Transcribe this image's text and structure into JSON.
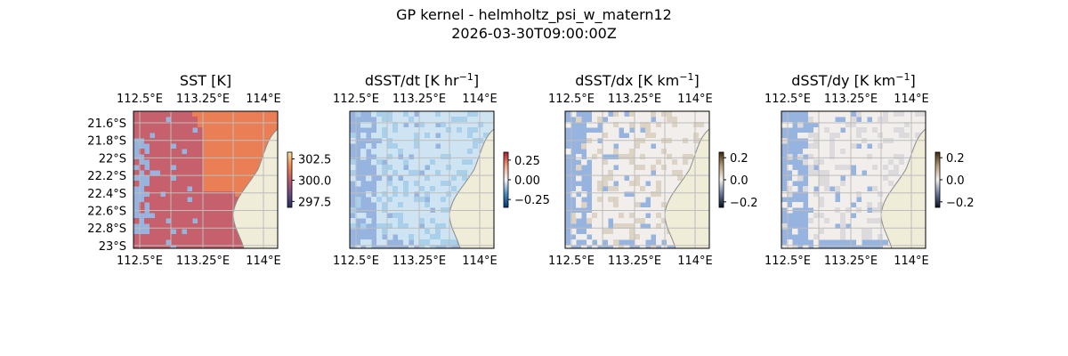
{
  "figure": {
    "title": "GP kernel - helmholtz_psi_w_matern12",
    "subtitle": "2026-03-30T09:00:00Z"
  },
  "chart_data": [
    {
      "type": "heatmap",
      "title": "SST [K]",
      "title_base": "SST [K]",
      "title_sup": "",
      "title_tail": "",
      "x_ticks": [
        "112.5°E",
        "113.25°E",
        "114°E"
      ],
      "y_ticks": [
        "21.6°S",
        "21.8°S",
        "22°S",
        "22.2°S",
        "22.4°S",
        "22.6°S",
        "22.8°S",
        "23°S"
      ],
      "show_y_ticks": true,
      "xlim": [
        112.4,
        114.15
      ],
      "ylim": [
        -23.03,
        -21.5
      ],
      "grid": true,
      "colorbar": {
        "ticks": [
          "302.5",
          "300.0",
          "297.5"
        ],
        "values": [
          302.5,
          300.0,
          297.5
        ],
        "range": [
          296.8,
          303.3
        ],
        "colors": [
          "#1f2f5e",
          "#6e4a80",
          "#c05a6c",
          "#f2884c",
          "#f7e4a0"
        ]
      },
      "colors": {
        "ocean": "#c5606c",
        "warm": "#ea7f56",
        "mask": "#97b4e0",
        "land": "#efecd8"
      }
    },
    {
      "type": "heatmap",
      "title": "dSST/dt [K hr−1]",
      "title_base": "dSST/dt [K hr",
      "title_sup": "−1",
      "title_tail": "]",
      "x_ticks": [
        "112.5°E",
        "113.25°E",
        "114°E"
      ],
      "y_ticks": [],
      "show_y_ticks": false,
      "xlim": [
        112.4,
        114.15
      ],
      "ylim": [
        -23.03,
        -21.5
      ],
      "grid": true,
      "colorbar": {
        "ticks": [
          "0.25",
          "0.00",
          "−0.25"
        ],
        "values": [
          0.25,
          0.0,
          -0.25
        ],
        "range": [
          -0.35,
          0.35
        ],
        "colors": [
          "#08306b",
          "#4a90c4",
          "#f4f7fb",
          "#f4a582",
          "#b2182b"
        ]
      },
      "colors": {
        "ocean": "#cfe4f3",
        "warm": "#a9d0ea",
        "mask": "#97b4e0",
        "land": "#efecd8"
      }
    },
    {
      "type": "heatmap",
      "title": "dSST/dx [K km−1]",
      "title_base": "dSST/dx [K km",
      "title_sup": "−1",
      "title_tail": "]",
      "x_ticks": [
        "112.5°E",
        "113.25°E",
        "114°E"
      ],
      "y_ticks": [],
      "show_y_ticks": false,
      "xlim": [
        112.4,
        114.15
      ],
      "ylim": [
        -23.03,
        -21.5
      ],
      "grid": true,
      "colorbar": {
        "ticks": [
          "0.2",
          "0.0",
          "−0.2"
        ],
        "values": [
          0.2,
          0.0,
          -0.2
        ],
        "range": [
          -0.25,
          0.25
        ],
        "colors": [
          "#0a0f1e",
          "#6b7aa0",
          "#f4f2ee",
          "#b8a07a",
          "#3d2a10"
        ]
      },
      "colors": {
        "ocean": "#f1eeec",
        "warm": "#ddd3c4",
        "mask": "#97b4e0",
        "land": "#efecd8"
      }
    },
    {
      "type": "heatmap",
      "title": "dSST/dy [K km−1]",
      "title_base": "dSST/dy [K km",
      "title_sup": "−1",
      "title_tail": "]",
      "x_ticks": [
        "112.5°E",
        "113.25°E",
        "114°E"
      ],
      "y_ticks": [],
      "show_y_ticks": false,
      "xlim": [
        112.4,
        114.15
      ],
      "ylim": [
        -23.03,
        -21.5
      ],
      "grid": true,
      "colorbar": {
        "ticks": [
          "0.2",
          "0.0",
          "−0.2"
        ],
        "values": [
          0.2,
          0.0,
          -0.2
        ],
        "range": [
          -0.25,
          0.25
        ],
        "colors": [
          "#0a0f1e",
          "#6b7aa0",
          "#f4f2ee",
          "#b8a07a",
          "#3d2a10"
        ]
      },
      "colors": {
        "ocean": "#f1eeec",
        "warm": "#dcdadc",
        "mask": "#97b4e0",
        "land": "#efecd8"
      }
    }
  ]
}
